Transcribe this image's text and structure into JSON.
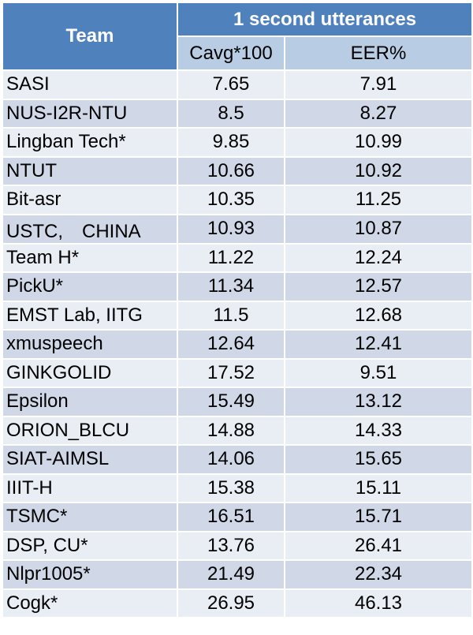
{
  "table": {
    "header": {
      "team": "Team",
      "group": "1 second utterances",
      "columns": [
        "Cavg*100",
        "EER%"
      ]
    },
    "rows": [
      [
        "SASI",
        "7.65",
        "7.91"
      ],
      [
        "NUS-I2R-NTU",
        "8.5",
        "8.27"
      ],
      [
        "Lingban Tech*",
        "9.85",
        "10.99"
      ],
      [
        "NTUT",
        "10.66",
        "10.92"
      ],
      [
        "Bit-asr",
        "10.35",
        "11.25"
      ],
      [
        "USTC,　CHINA",
        "10.93",
        "10.87"
      ],
      [
        "Team H*",
        "11.22",
        "12.24"
      ],
      [
        "PickU*",
        "11.34",
        "12.57"
      ],
      [
        "EMST Lab, IITG",
        "11.5",
        "12.68"
      ],
      [
        "xmuspeech",
        "12.64",
        "12.41"
      ],
      [
        "GINKGOLID",
        "17.52",
        "9.51"
      ],
      [
        "Epsilon",
        "15.49",
        "13.12"
      ],
      [
        "ORION_BLCU",
        "14.88",
        "14.33"
      ],
      [
        "SIAT-AIMSL",
        "14.06",
        "15.65"
      ],
      [
        "IIIT-H",
        "15.38",
        "15.11"
      ],
      [
        "TSMC*",
        "16.51",
        "15.71"
      ],
      [
        "DSP, CU*",
        "13.76",
        "26.41"
      ],
      [
        "Nlpr1005*",
        "21.49",
        "22.34"
      ],
      [
        "Cogk*",
        "26.95",
        "46.13"
      ]
    ]
  }
}
